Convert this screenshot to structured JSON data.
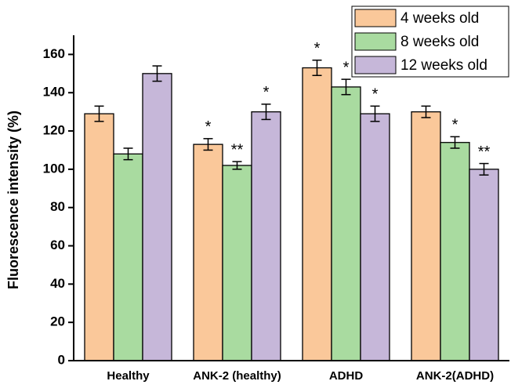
{
  "chart_data": {
    "type": "bar",
    "y_label": "Fluorescence intensity (%)",
    "categories": [
      "Healthy",
      "ANK-2 (healthy)",
      "ADHD",
      "ANK-2(ADHD)"
    ],
    "series": [
      {
        "name": "4 weeks old",
        "color": "#fac89a",
        "values": [
          129,
          113,
          153,
          130
        ],
        "errors": [
          4,
          3,
          4,
          3
        ],
        "annotations": [
          null,
          "*",
          "*",
          null
        ]
      },
      {
        "name": "8 weeks old",
        "color": "#a9dba0",
        "values": [
          108,
          102,
          143,
          114
        ],
        "errors": [
          3,
          2,
          4,
          3
        ],
        "annotations": [
          null,
          "**",
          "*",
          "*"
        ]
      },
      {
        "name": "12 weeks old",
        "color": "#c6b7d9",
        "values": [
          150,
          130,
          129,
          100
        ],
        "errors": [
          4,
          4,
          4,
          3
        ],
        "annotations": [
          null,
          "*",
          "*",
          "**"
        ]
      }
    ],
    "ylim": [
      0,
      170
    ],
    "yticks": [
      0,
      20,
      40,
      60,
      80,
      100,
      120,
      140,
      160
    ],
    "legend": "upper right"
  }
}
